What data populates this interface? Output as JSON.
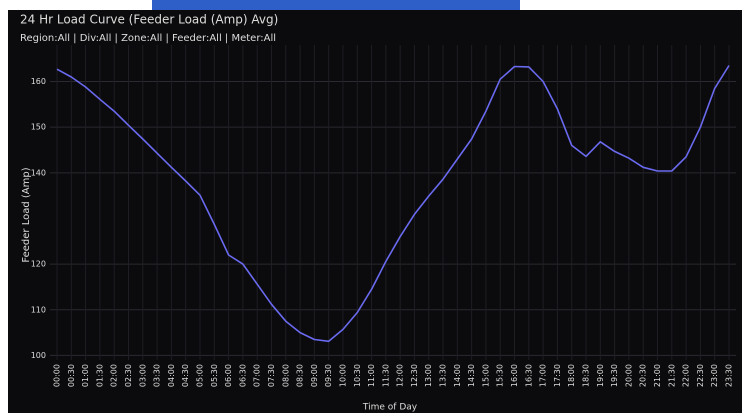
{
  "chart_data": {
    "type": "line",
    "title": "24 Hr Load Curve (Feeder Load (Amp) Avg)",
    "subtitle": "Region:All | Div:All | Zone:All | Feeder:All | Meter:All",
    "x_label": "Time of Day",
    "y_label": "Feeder Load (Amp)",
    "categories": [
      "00:00",
      "00:30",
      "01:00",
      "01:30",
      "02:00",
      "02:30",
      "03:00",
      "03:30",
      "04:00",
      "04:30",
      "05:00",
      "05:30",
      "06:00",
      "06:30",
      "07:00",
      "07:30",
      "08:00",
      "08:30",
      "09:00",
      "09:30",
      "10:00",
      "10:30",
      "11:00",
      "11:30",
      "12:00",
      "12:30",
      "13:00",
      "13:30",
      "14:00",
      "14:30",
      "15:00",
      "15:30",
      "16:00",
      "16:30",
      "17:00",
      "17:30",
      "18:00",
      "18:30",
      "19:00",
      "19:30",
      "20:00",
      "20:30",
      "21:00",
      "21:30",
      "22:00",
      "22:30",
      "23:00",
      "23:30"
    ],
    "series": [
      {
        "name": "Feeder Load (Amp)",
        "color": "#6a6af0",
        "values": [
          162.7,
          161,
          158.8,
          156.1,
          153.5,
          150.4,
          147.4,
          144.3,
          141.2,
          138.2,
          135.1,
          128.7,
          122,
          120,
          115.6,
          111.2,
          107.5,
          105,
          103.5,
          103.1,
          105.7,
          109.4,
          114.5,
          120.6,
          126,
          130.9,
          134.9,
          138.6,
          143,
          147.4,
          153.5,
          160.5,
          163.3,
          163.2,
          160,
          154,
          146,
          143.6,
          146.8,
          144.7,
          143.2,
          141.2,
          140.4,
          140.4,
          143.5,
          150,
          158.5,
          163.5
        ]
      }
    ],
    "ylim": [
      99,
      168
    ],
    "yticks": [
      100,
      110,
      120,
      140,
      150,
      160
    ],
    "grid": true
  }
}
